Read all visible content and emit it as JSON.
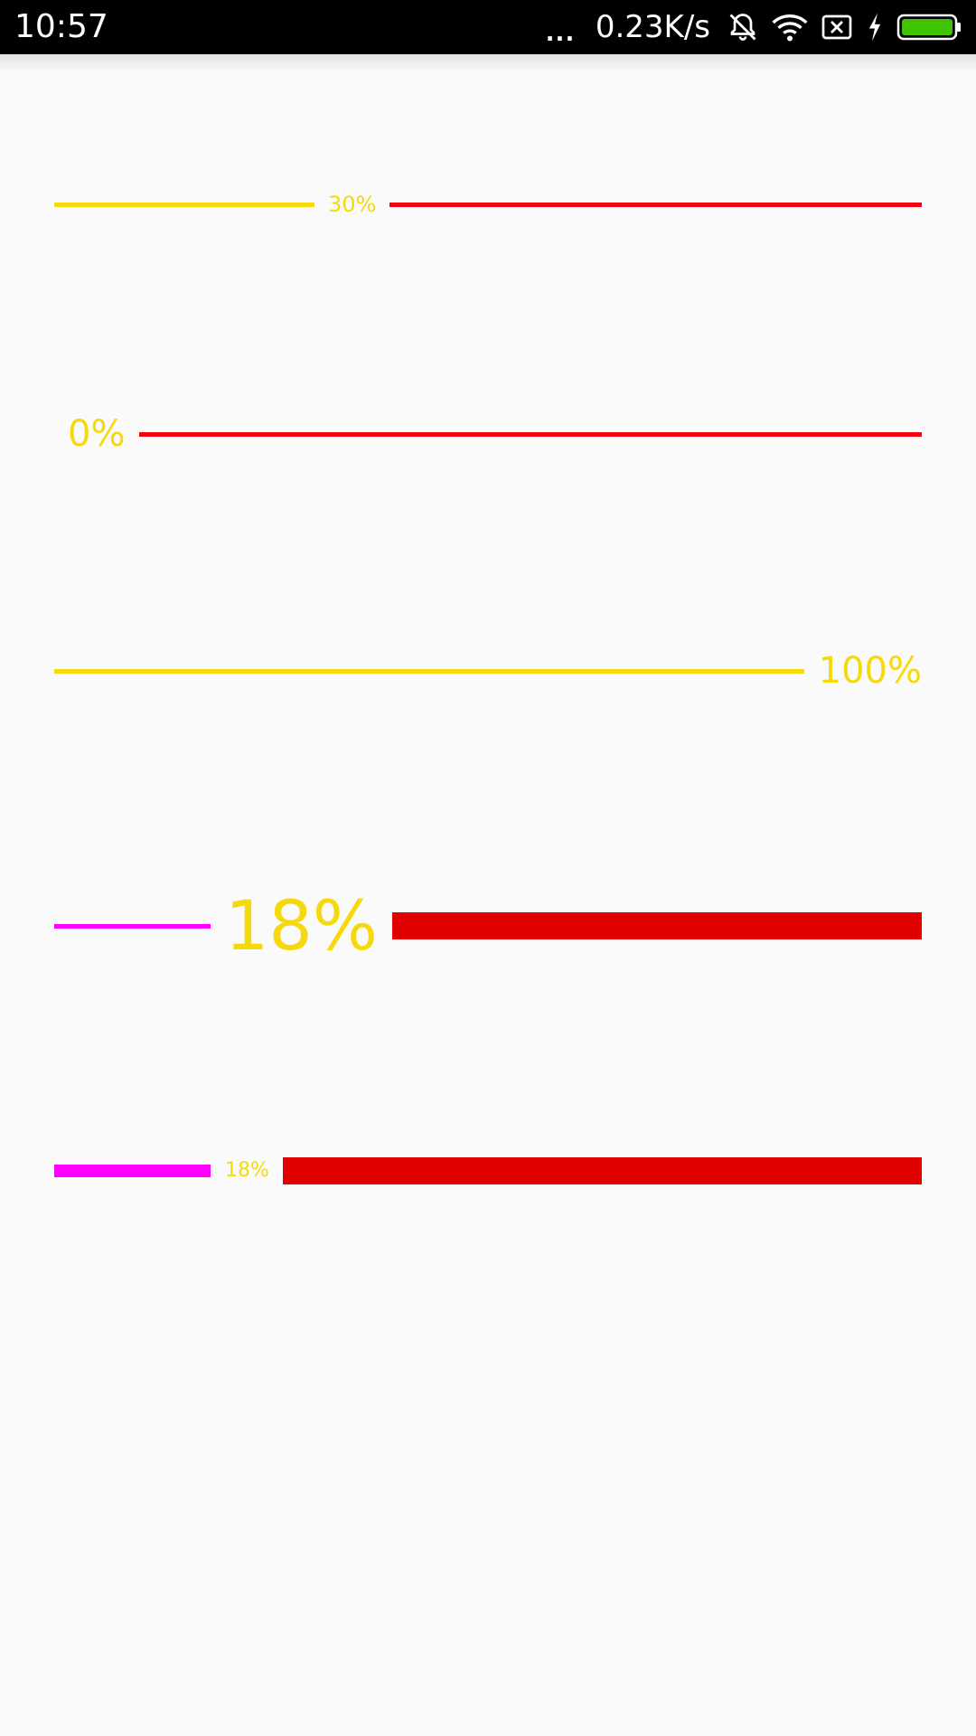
{
  "status_bar": {
    "time": "10:57",
    "dots": "...",
    "net_speed": "0.23K/s",
    "icons": [
      "alarm-off-icon",
      "wifi-icon",
      "sim-no-signal-icon",
      "charging-bolt-icon",
      "battery-icon"
    ],
    "battery_color": "#3ec400"
  },
  "colors": {
    "background": "#fafafa",
    "reached_yellow": "#f5d90a",
    "unreached_red": "#f5000f",
    "unreached_dark_red": "#e00000",
    "reached_magenta": "#ff00ff",
    "text_yellow": "#f5d90a"
  },
  "progress_bars": [
    {
      "label": "30%",
      "value": 0.3
    },
    {
      "label": "0%",
      "value": 0.0
    },
    {
      "label": "100%",
      "value": 1.0
    },
    {
      "label": "18%",
      "value": 0.18
    },
    {
      "label": "18%",
      "value": 0.18
    }
  ]
}
